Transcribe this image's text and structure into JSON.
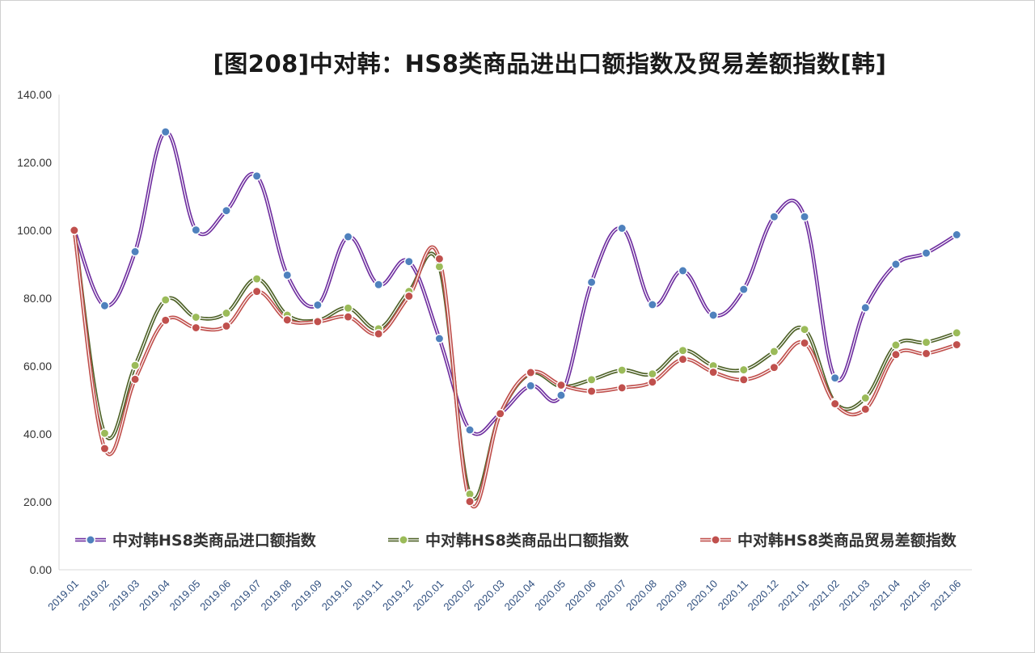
{
  "chart_data": {
    "type": "line",
    "title": "[图208]中对韩：HS8类商品进出口额指数及贸易差额指数[韩]",
    "xlabel": "",
    "ylabel": "",
    "ylim": [
      0,
      140
    ],
    "yticks": [
      "0.00",
      "20.00",
      "40.00",
      "60.00",
      "80.00",
      "100.00",
      "120.00",
      "140.00"
    ],
    "grid": false,
    "legend_position": "bottom",
    "categories": [
      "2019.01",
      "2019.02",
      "2019.03",
      "2019.04",
      "2019.05",
      "2019.06",
      "2019.07",
      "2019.08",
      "2019.09",
      "2019.10",
      "2019.11",
      "2019.12",
      "2020.01",
      "2020.02",
      "2020.03",
      "2020.04",
      "2020.05",
      "2020.06",
      "2020.07",
      "2020.08",
      "2020.09",
      "2020.10",
      "2020.11",
      "2020.12",
      "2021.01",
      "2021.02",
      "2021.03",
      "2021.04",
      "2021.05",
      "2021.06"
    ],
    "series": [
      {
        "name": "中对韩HS8类商品进口额指数",
        "line_color": "#7030a0",
        "marker_color": "#4f81bd",
        "values": [
          100.0,
          77.8,
          93.7,
          129.0,
          100.1,
          105.8,
          116.0,
          86.8,
          78.0,
          98.1,
          84.0,
          90.8,
          68.1,
          41.2,
          46.0,
          54.2,
          51.4,
          84.7,
          100.6,
          78.1,
          88.1,
          75.0,
          82.6,
          104.0,
          104.0,
          56.5,
          77.2,
          90.0,
          93.3,
          98.7
        ]
      },
      {
        "name": "中对韩HS8类商品出口额指数",
        "line_color": "#4f6228",
        "marker_color": "#9bbb59",
        "values": [
          100.0,
          40.2,
          60.2,
          79.5,
          74.4,
          75.6,
          85.7,
          75.0,
          73.5,
          77.1,
          71.0,
          82.0,
          89.3,
          22.3,
          46.0,
          57.8,
          54.0,
          56.0,
          58.8,
          57.7,
          64.6,
          60.1,
          58.9,
          64.3,
          70.8,
          49.3,
          50.6,
          66.2,
          67.0,
          69.8
        ]
      },
      {
        "name": "中对韩HS8类商品贸易差额指数",
        "line_color": "#c0504d",
        "marker_color": "#c0504d",
        "values": [
          100.0,
          35.7,
          56.1,
          73.5,
          71.3,
          71.8,
          82.0,
          73.6,
          73.1,
          74.5,
          69.5,
          80.6,
          91.6,
          20.1,
          46.0,
          58.1,
          54.4,
          52.6,
          53.6,
          55.3,
          62.0,
          58.2,
          56.0,
          59.6,
          66.8,
          48.9,
          47.3,
          63.4,
          63.7,
          66.3
        ]
      }
    ]
  }
}
